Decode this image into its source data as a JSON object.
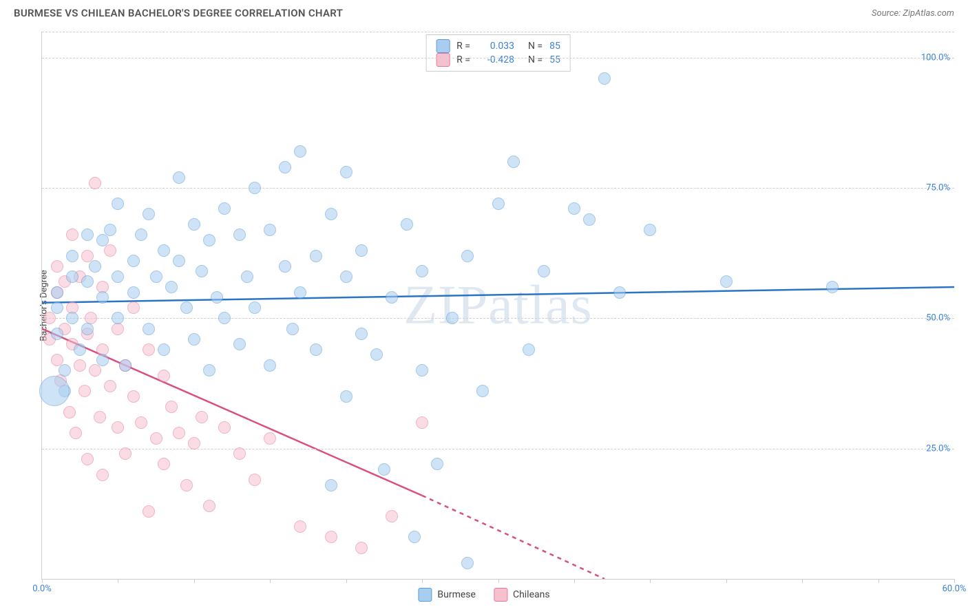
{
  "title": "BURMESE VS CHILEAN BACHELOR'S DEGREE CORRELATION CHART",
  "source": "Source: ZipAtlas.com",
  "ylabel": "Bachelor's Degree",
  "watermark": "ZIPatlas",
  "chart": {
    "type": "scatter",
    "xlim": [
      0,
      60
    ],
    "ylim": [
      0,
      105
    ],
    "xticks": [
      0,
      5,
      10,
      15,
      20,
      25,
      30,
      35,
      40,
      45,
      50,
      55,
      60
    ],
    "xtick_labels": {
      "0": "0.0%",
      "60": "60.0%"
    },
    "yticks": [
      25,
      50,
      75,
      100
    ],
    "ytick_labels": [
      "25.0%",
      "50.0%",
      "75.0%",
      "100.0%"
    ],
    "grid_color": "#d0d0d0",
    "axis_color": "#cccccc",
    "background_color": "#ffffff",
    "point_radius": 9,
    "point_opacity": 0.55,
    "series": {
      "burmese": {
        "label": "Burmese",
        "fill": "#a9cdf0",
        "stroke": "#5a9ad6",
        "trend_color": "#2a74c8",
        "trend": {
          "x1": 0,
          "y1": 53,
          "x2": 60,
          "y2": 56
        },
        "R": "0.033",
        "N": "85",
        "points": [
          [
            1,
            47
          ],
          [
            1,
            52
          ],
          [
            1,
            55
          ],
          [
            1.5,
            40
          ],
          [
            1.5,
            36
          ],
          [
            2,
            62
          ],
          [
            2,
            58
          ],
          [
            2,
            50
          ],
          [
            2.5,
            44
          ],
          [
            3,
            66
          ],
          [
            3,
            57
          ],
          [
            3,
            48
          ],
          [
            3.5,
            60
          ],
          [
            4,
            65
          ],
          [
            4,
            54
          ],
          [
            4,
            42
          ],
          [
            4.5,
            67
          ],
          [
            5,
            72
          ],
          [
            5,
            58
          ],
          [
            5,
            50
          ],
          [
            5.5,
            41
          ],
          [
            6,
            61
          ],
          [
            6,
            55
          ],
          [
            6.5,
            66
          ],
          [
            7,
            70
          ],
          [
            7,
            48
          ],
          [
            7.5,
            58
          ],
          [
            8,
            63
          ],
          [
            8,
            44
          ],
          [
            8.5,
            56
          ],
          [
            9,
            77
          ],
          [
            9,
            61
          ],
          [
            9.5,
            52
          ],
          [
            10,
            68
          ],
          [
            10,
            46
          ],
          [
            10.5,
            59
          ],
          [
            11,
            65
          ],
          [
            11,
            40
          ],
          [
            11.5,
            54
          ],
          [
            12,
            71
          ],
          [
            12,
            50
          ],
          [
            13,
            66
          ],
          [
            13,
            45
          ],
          [
            13.5,
            58
          ],
          [
            14,
            75
          ],
          [
            14,
            52
          ],
          [
            15,
            67
          ],
          [
            15,
            41
          ],
          [
            16,
            79
          ],
          [
            16,
            60
          ],
          [
            16.5,
            48
          ],
          [
            17,
            82
          ],
          [
            17,
            55
          ],
          [
            18,
            62
          ],
          [
            18,
            44
          ],
          [
            19,
            70
          ],
          [
            19,
            18
          ],
          [
            20,
            78
          ],
          [
            20,
            58
          ],
          [
            20,
            35
          ],
          [
            21,
            63
          ],
          [
            21,
            47
          ],
          [
            22,
            43
          ],
          [
            22.5,
            21
          ],
          [
            23,
            54
          ],
          [
            24,
            68
          ],
          [
            24.5,
            8
          ],
          [
            25,
            40
          ],
          [
            25,
            59
          ],
          [
            26,
            22
          ],
          [
            27,
            50
          ],
          [
            28,
            62
          ],
          [
            28,
            3
          ],
          [
            29,
            36
          ],
          [
            30,
            72
          ],
          [
            31,
            80
          ],
          [
            32,
            44
          ],
          [
            33,
            59
          ],
          [
            35,
            71
          ],
          [
            36,
            69
          ],
          [
            37,
            96
          ],
          [
            38,
            55
          ],
          [
            40,
            67
          ],
          [
            45,
            57
          ],
          [
            52,
            56
          ]
        ],
        "bigpoint": {
          "x": 0.8,
          "y": 36,
          "r": 22
        }
      },
      "chileans": {
        "label": "Chileans",
        "fill": "#f6c0cf",
        "stroke": "#e6779a",
        "trend_color": "#d94f80",
        "trend_solid": {
          "x1": 0,
          "y1": 48,
          "x2": 25,
          "y2": 16
        },
        "trend_dash": {
          "x1": 25,
          "y1": 16,
          "x2": 37,
          "y2": 0
        },
        "R": "-0.428",
        "N": "55",
        "points": [
          [
            0.5,
            46
          ],
          [
            0.5,
            50
          ],
          [
            1,
            42
          ],
          [
            1,
            55
          ],
          [
            1,
            60
          ],
          [
            1.2,
            38
          ],
          [
            1.5,
            48
          ],
          [
            1.5,
            57
          ],
          [
            1.8,
            32
          ],
          [
            2,
            66
          ],
          [
            2,
            45
          ],
          [
            2,
            52
          ],
          [
            2.2,
            28
          ],
          [
            2.5,
            58
          ],
          [
            2.5,
            41
          ],
          [
            2.8,
            36
          ],
          [
            3,
            62
          ],
          [
            3,
            47
          ],
          [
            3,
            23
          ],
          [
            3.2,
            50
          ],
          [
            3.5,
            76
          ],
          [
            3.5,
            40
          ],
          [
            3.8,
            31
          ],
          [
            4,
            56
          ],
          [
            4,
            44
          ],
          [
            4,
            20
          ],
          [
            4.5,
            63
          ],
          [
            4.5,
            37
          ],
          [
            5,
            29
          ],
          [
            5,
            48
          ],
          [
            5.5,
            41
          ],
          [
            5.5,
            24
          ],
          [
            6,
            35
          ],
          [
            6,
            52
          ],
          [
            6.5,
            30
          ],
          [
            7,
            13
          ],
          [
            7,
            44
          ],
          [
            7.5,
            27
          ],
          [
            8,
            39
          ],
          [
            8,
            22
          ],
          [
            8.5,
            33
          ],
          [
            9,
            28
          ],
          [
            9.5,
            18
          ],
          [
            10,
            26
          ],
          [
            10.5,
            31
          ],
          [
            11,
            14
          ],
          [
            12,
            29
          ],
          [
            13,
            24
          ],
          [
            14,
            19
          ],
          [
            15,
            27
          ],
          [
            17,
            10
          ],
          [
            19,
            8
          ],
          [
            21,
            6
          ],
          [
            23,
            12
          ],
          [
            25,
            30
          ]
        ]
      }
    }
  },
  "legend": {
    "rows": [
      {
        "swatch_fill": "#a9cdf0",
        "swatch_stroke": "#5a9ad6",
        "r_label": "R =",
        "r_val": "0.033",
        "n_label": "N =",
        "n_val": "85"
      },
      {
        "swatch_fill": "#f6c0cf",
        "swatch_stroke": "#e6779a",
        "r_label": "R =",
        "r_val": "-0.428",
        "n_label": "N =",
        "n_val": "55"
      }
    ]
  },
  "bottom_legend": [
    {
      "fill": "#a9cdf0",
      "stroke": "#5a9ad6",
      "label": "Burmese"
    },
    {
      "fill": "#f6c0cf",
      "stroke": "#e6779a",
      "label": "Chileans"
    }
  ]
}
